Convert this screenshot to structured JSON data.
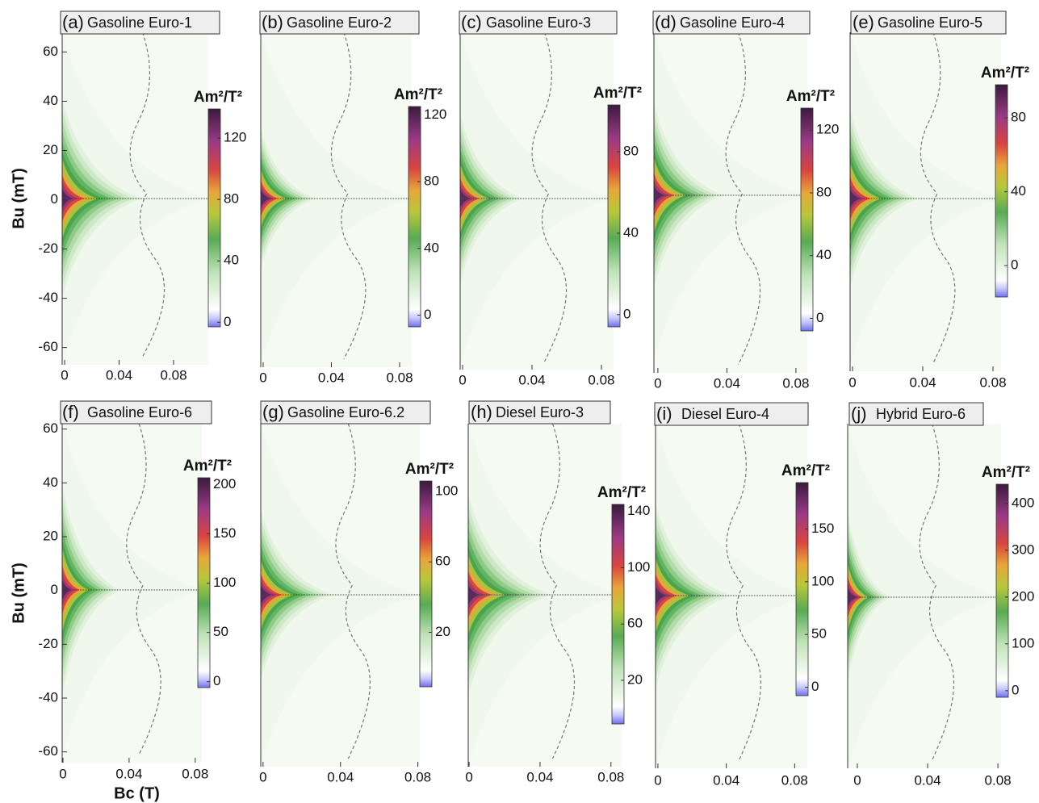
{
  "chart_data": [
    {
      "type": "forc",
      "panel": "(a)",
      "title": "Gasoline Euro-1",
      "ylabel": "Bu (mT)",
      "xlim": [
        -0.0018,
        0.1055
      ],
      "xticks": [
        0,
        0.04,
        0.08
      ],
      "ylim": [
        -67,
        68
      ],
      "yticks": [
        60,
        40,
        20,
        0,
        -20,
        -40,
        -60
      ],
      "colorbar": {
        "label": "Am²/T²",
        "lim": [
          -3,
          139
        ],
        "ticks": [
          0,
          40,
          80,
          120
        ]
      }
    },
    {
      "type": "forc",
      "panel": "(b)",
      "title": "Gasoline Euro-2",
      "xlim": [
        -0.0014,
        0.0871
      ],
      "xticks": [
        0,
        0.04,
        0.08
      ],
      "colorbar": {
        "label": "Am²/T²",
        "lim": [
          -7,
          125
        ],
        "ticks": [
          0,
          40,
          80,
          120
        ]
      }
    },
    {
      "type": "forc",
      "panel": "(c)",
      "title": "Gasoline Euro-3",
      "xlim": [
        -0.0014,
        0.087
      ],
      "xticks": [
        0,
        0.04,
        0.08
      ],
      "colorbar": {
        "label": "Am²/T²",
        "lim": [
          -6,
          103
        ],
        "ticks": [
          0,
          40,
          80
        ]
      }
    },
    {
      "type": "forc",
      "panel": "(d)",
      "title": "Gasoline Euro-4",
      "xlim": [
        -0.0023,
        0.0866
      ],
      "xticks": [
        0,
        0.04,
        0.08
      ],
      "colorbar": {
        "label": "Am²/T²",
        "lim": [
          -8,
          134
        ],
        "ticks": [
          0,
          40,
          80,
          120
        ]
      }
    },
    {
      "type": "forc",
      "panel": "(e)",
      "title": "Gasoline Euro-5",
      "xlim": [
        -0.0014,
        0.0846
      ],
      "xticks": [
        0,
        0.04,
        0.08
      ],
      "colorbar": {
        "label": "Am²/T²",
        "lim": [
          -17,
          98
        ],
        "ticks": [
          0,
          40,
          80
        ]
      }
    },
    {
      "type": "forc",
      "panel": "(f)",
      "title": "Gasoline Euro-6",
      "ylabel": "Bu (mT)",
      "xlabel": "Bc (T)",
      "xlim": [
        -0.0005,
        0.084
      ],
      "xticks": [
        0,
        0.04,
        0.08
      ],
      "ylim": [
        -64,
        62
      ],
      "yticks": [
        60,
        40,
        20,
        0,
        -20,
        -40,
        -60
      ],
      "colorbar": {
        "label": "Am²/T²",
        "lim": [
          -6,
          207
        ],
        "ticks": [
          0,
          50,
          100,
          150,
          200
        ]
      }
    },
    {
      "type": "forc",
      "panel": "(g)",
      "title": "Gasoline Euro-6.2",
      "xlim": [
        -0.0012,
        0.081
      ],
      "xticks": [
        0,
        0.04,
        0.08
      ],
      "colorbar": {
        "label": "Am²/T²",
        "lim": [
          -11,
          106
        ],
        "ticks": [
          20,
          60,
          100
        ]
      }
    },
    {
      "type": "forc",
      "panel": "(h)",
      "title": "Diesel Euro-3",
      "xlim": [
        -0.0005,
        0.086
      ],
      "xticks": [
        0,
        0.04,
        0.08
      ],
      "colorbar": {
        "label": "Am²/T²",
        "lim": [
          -11,
          145
        ],
        "ticks": [
          20,
          60,
          100,
          140
        ]
      }
    },
    {
      "type": "forc",
      "panel": "(i)",
      "title": "Diesel Euro-4",
      "xlim": [
        -0.0014,
        0.0874
      ],
      "xticks": [
        0,
        0.04,
        0.08
      ],
      "colorbar": {
        "label": "Am²/T²",
        "lim": [
          -8,
          194
        ],
        "ticks": [
          0,
          50,
          100,
          150
        ]
      }
    },
    {
      "type": "forc",
      "panel": "(j)",
      "title": "Hybrid Euro-6",
      "xlim": [
        -0.0055,
        0.0818
      ],
      "xticks": [
        0,
        0.04,
        0.08
      ],
      "colorbar": {
        "label": "Am²/T²",
        "lim": [
          -14,
          441
        ],
        "ticks": [
          0,
          100,
          200,
          300,
          400
        ]
      }
    }
  ]
}
